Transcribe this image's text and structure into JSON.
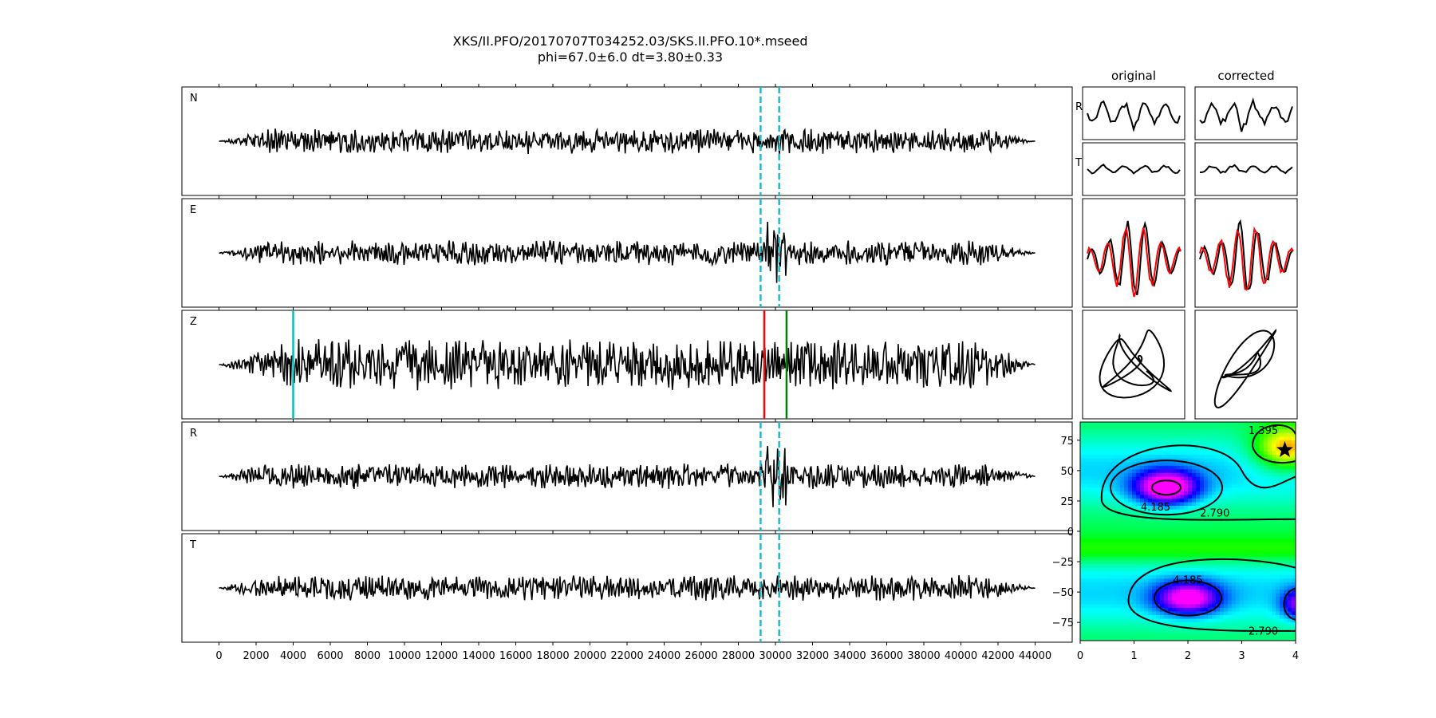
{
  "title": {
    "line1": "XKS/II.PFO/20170707T034252.03/SKS.II.PFO.10*.mseed",
    "line2": "phi=67.0±6.0 dt=3.80±0.33"
  },
  "column_titles": {
    "original": "original",
    "corrected": "corrected"
  },
  "small_labels": {
    "r": "R",
    "t": "T"
  },
  "chart_data": [
    {
      "type": "line",
      "name": "seismogram-traces",
      "traces": [
        "N",
        "E",
        "Z",
        "R",
        "T"
      ],
      "x_range": [
        -2000,
        46000
      ],
      "data_range": [
        0,
        44000
      ],
      "x_ticks": [
        0,
        2000,
        4000,
        6000,
        8000,
        10000,
        12000,
        14000,
        16000,
        18000,
        20000,
        22000,
        24000,
        26000,
        28000,
        30000,
        32000,
        34000,
        36000,
        38000,
        40000,
        42000,
        44000
      ],
      "window_lines": {
        "x": [
          29200,
          30200
        ],
        "traces": [
          "N",
          "E",
          "R",
          "T"
        ],
        "color": "#17becf"
      },
      "z_markers": [
        {
          "x": 4000,
          "color": "#00bfbf"
        },
        {
          "x": 29400,
          "color": "#ff0000"
        },
        {
          "x": 30600,
          "color": "#008000"
        }
      ]
    },
    {
      "type": "heatmap",
      "name": "energy-grid",
      "xlim": [
        0,
        4
      ],
      "ylim": [
        -90,
        90
      ],
      "x_ticks": [
        0,
        1,
        2,
        3,
        4
      ],
      "y_ticks": [
        75,
        50,
        25,
        0,
        -25,
        -50,
        -75
      ],
      "contour_labels": [
        "1.395",
        "4.185",
        "2.790",
        "4.185",
        "2.790"
      ],
      "best_fit": {
        "dt": 3.8,
        "phi": 67.0
      }
    }
  ],
  "colors": {
    "trace": "#000000",
    "window": "#17becf",
    "red": "#ff0000"
  }
}
